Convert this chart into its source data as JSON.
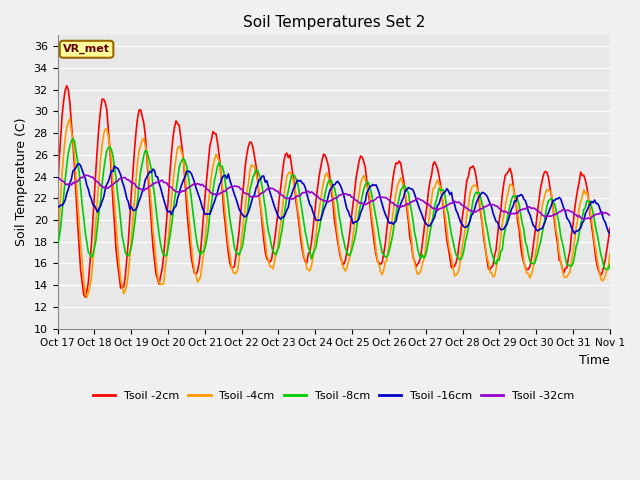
{
  "title": "Soil Temperatures Set 2",
  "xlabel": "Time",
  "ylabel": "Soil Temperature (C)",
  "ylim": [
    10,
    37
  ],
  "yticks": [
    10,
    12,
    14,
    16,
    18,
    20,
    22,
    24,
    26,
    28,
    30,
    32,
    34,
    36
  ],
  "xtick_labels": [
    "Oct 17",
    "Oct 18",
    "Oct 19",
    "Oct 20",
    "Oct 21",
    "Oct 22",
    "Oct 23",
    "Oct 24",
    "Oct 25",
    "Oct 26",
    "Oct 27",
    "Oct 28",
    "Oct 29",
    "Oct 30",
    "Oct 31",
    "Nov 1"
  ],
  "annotation_text": "VR_met",
  "annotation_bg": "#ffff99",
  "annotation_border": "#996600",
  "fig_bg": "#f0f0f0",
  "plot_bg": "#e8e8e8",
  "grid_color": "#ffffff",
  "colors": {
    "Tsoil -2cm": "#ff0000",
    "Tsoil -4cm": "#ff9900",
    "Tsoil -8cm": "#00cc00",
    "Tsoil -16cm": "#0000cc",
    "Tsoil -32cm": "#9900cc"
  }
}
